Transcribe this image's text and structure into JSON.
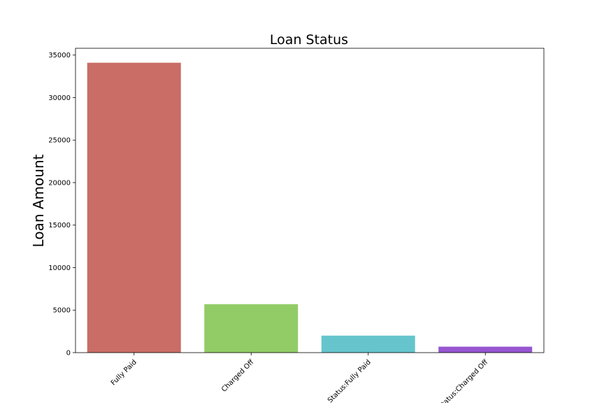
{
  "chart_data": {
    "type": "bar",
    "title": "Loan Status",
    "xlabel": "",
    "ylabel": "Loan Amount",
    "categories": [
      "Fully Paid",
      "Charged Off",
      "Status:Fully Paid",
      "Status:Charged Off"
    ],
    "values": [
      34100,
      5700,
      2000,
      700
    ],
    "colors": [
      "#c96d66",
      "#92cc66",
      "#66c5cc",
      "#9656cf"
    ],
    "ylim": [
      0,
      35800
    ],
    "yticks": [
      0,
      5000,
      10000,
      15000,
      20000,
      25000,
      30000,
      35000
    ],
    "ytick_labels": [
      "0",
      "5000",
      "10000",
      "15000",
      "20000",
      "25000",
      "30000",
      "35000"
    ],
    "xtick_rotation": 45,
    "grid": false,
    "legend": "none"
  }
}
